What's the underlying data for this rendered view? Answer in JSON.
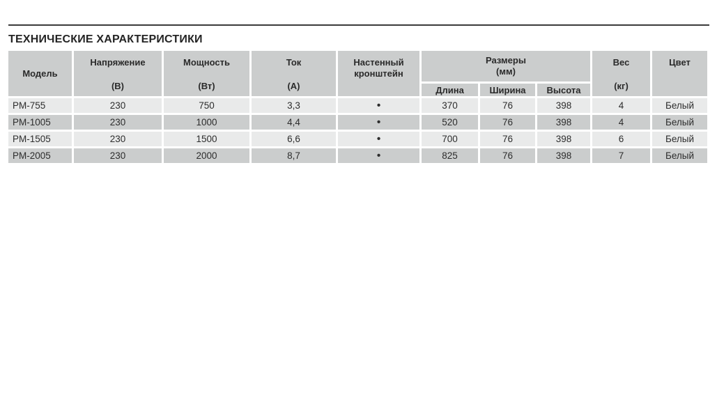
{
  "title": "ТЕХНИЧЕСКИЕ ХАРАКТЕРИСТИКИ",
  "table": {
    "headers": {
      "model": {
        "label": "Модель"
      },
      "voltage": {
        "label": "Напряжение",
        "unit": "(В)"
      },
      "power": {
        "label": "Мощность",
        "unit": "(Вт)"
      },
      "current": {
        "label": "Ток",
        "unit": "(А)"
      },
      "bracket": {
        "label": "Настенный кронштейн"
      },
      "dimensions": {
        "label": "Размеры",
        "unit": "(мм)",
        "sub": {
          "length": "Длина",
          "width": "Ширина",
          "height": "Высота"
        }
      },
      "weight": {
        "label": "Вес",
        "unit": "(кг)"
      },
      "color": {
        "label": "Цвет"
      }
    },
    "rows": [
      {
        "model": "PM-755",
        "voltage": "230",
        "power": "750",
        "current": "3,3",
        "bracket": "•",
        "length": "370",
        "width": "76",
        "height": "398",
        "weight": "4",
        "color": "Белый"
      },
      {
        "model": "PM-1005",
        "voltage": "230",
        "power": "1000",
        "current": "4,4",
        "bracket": "•",
        "length": "520",
        "width": "76",
        "height": "398",
        "weight": "4",
        "color": "Белый"
      },
      {
        "model": "PM-1505",
        "voltage": "230",
        "power": "1500",
        "current": "6,6",
        "bracket": "•",
        "length": "700",
        "width": "76",
        "height": "398",
        "weight": "6",
        "color": "Белый"
      },
      {
        "model": "PM-2005",
        "voltage": "230",
        "power": "2000",
        "current": "8,7",
        "bracket": "•",
        "length": "825",
        "width": "76",
        "height": "398",
        "weight": "7",
        "color": "Белый"
      }
    ]
  },
  "colors": {
    "header_bg": "#cbcdcd",
    "row_light": "#e9eaea",
    "row_dark": "#cbcdcd",
    "text": "#2d2d2d",
    "rule": "#3b3b3b",
    "background": "#ffffff"
  }
}
